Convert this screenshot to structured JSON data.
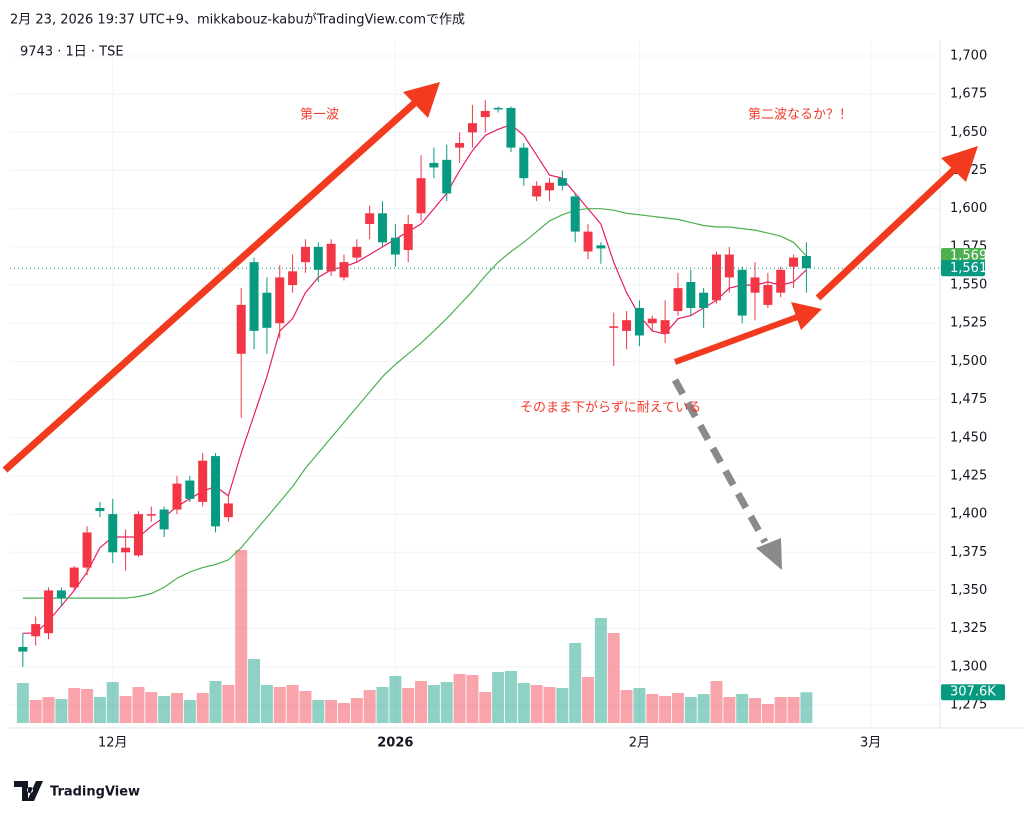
{
  "header": "2月 23, 2026 19:37 UTC+9、mikkabouz-kabuがTradingView.comで作成",
  "logo": "TradingView",
  "chart_data": {
    "type": "candlestick",
    "title": "9743 · 1日 · TSE",
    "x": [
      0,
      1,
      2,
      3,
      4,
      5,
      6,
      7,
      8,
      9,
      10,
      11,
      12,
      13,
      14,
      15,
      16,
      17,
      18,
      19,
      20,
      21,
      22,
      23,
      24,
      25,
      26,
      27,
      28,
      29,
      30,
      31,
      32,
      33,
      34,
      35,
      36,
      37,
      38,
      39,
      40,
      41,
      42,
      43,
      44,
      45,
      46,
      47,
      48,
      49,
      50,
      51,
      52,
      53,
      54,
      55,
      56,
      57,
      58,
      59,
      60,
      61
    ],
    "open": [
      1313,
      1320,
      1322,
      1350,
      1352,
      1365,
      1404,
      1400,
      1375,
      1373,
      1399,
      1403,
      1403,
      1422,
      1408,
      1438,
      1398,
      1505,
      1565,
      1545,
      1525,
      1550,
      1565,
      1575,
      1559,
      1555,
      1568,
      1590,
      1597,
      1581,
      1573,
      1597,
      1630,
      1632,
      1640,
      1650,
      1660,
      1666,
      1666,
      1640,
      1608,
      1612,
      1620,
      1608,
      1572,
      1576,
      1522,
      1520,
      1535,
      1525,
      1518,
      1533,
      1552,
      1545,
      1540,
      1555,
      1560,
      1545,
      1537,
      1545,
      1562,
      1569
    ],
    "high": [
      1322,
      1333,
      1352,
      1352,
      1366,
      1392,
      1408,
      1410,
      1390,
      1402,
      1405,
      1405,
      1425,
      1425,
      1440,
      1440,
      1412,
      1548,
      1568,
      1555,
      1563,
      1570,
      1580,
      1578,
      1580,
      1570,
      1580,
      1602,
      1605,
      1590,
      1596,
      1635,
      1640,
      1642,
      1650,
      1668,
      1671,
      1667,
      1667,
      1643,
      1618,
      1620,
      1625,
      1610,
      1590,
      1578,
      1532,
      1533,
      1540,
      1530,
      1540,
      1558,
      1560,
      1548,
      1572,
      1575,
      1562,
      1565,
      1558,
      1562,
      1570,
      1578
    ],
    "low": [
      1300,
      1314,
      1318,
      1340,
      1350,
      1360,
      1398,
      1368,
      1363,
      1372,
      1395,
      1385,
      1400,
      1408,
      1405,
      1388,
      1395,
      1463,
      1508,
      1505,
      1515,
      1545,
      1558,
      1552,
      1556,
      1553,
      1565,
      1580,
      1575,
      1562,
      1565,
      1592,
      1620,
      1605,
      1630,
      1640,
      1650,
      1663,
      1637,
      1615,
      1605,
      1605,
      1612,
      1578,
      1567,
      1564,
      1497,
      1508,
      1510,
      1520,
      1512,
      1530,
      1530,
      1522,
      1538,
      1545,
      1525,
      1527,
      1535,
      1542,
      1548,
      1545
    ],
    "close": [
      1310,
      1328,
      1350,
      1345,
      1365,
      1388,
      1402,
      1375,
      1378,
      1400,
      1400,
      1390,
      1420,
      1410,
      1435,
      1392,
      1407,
      1537,
      1520,
      1522,
      1555,
      1559,
      1575,
      1560,
      1577,
      1565,
      1575,
      1597,
      1578,
      1570,
      1590,
      1620,
      1627,
      1610,
      1643,
      1656,
      1664,
      1665,
      1640,
      1620,
      1615,
      1617,
      1615,
      1585,
      1585,
      1574,
      1523,
      1527,
      1517,
      1528,
      1527,
      1548,
      1535,
      1535,
      1570,
      1570,
      1530,
      1555,
      1550,
      1560,
      1568,
      1561
    ],
    "up_color": "#f23645",
    "down_color": "#089981",
    "lines": [
      {
        "color": "#e91e63",
        "values": [
          1322,
          1322,
          1330,
          1340,
          1350,
          1362,
          1378,
          1385,
          1385,
          1385,
          1392,
          1398,
          1405,
          1410,
          1415,
          1418,
          1412,
          1440,
          1465,
          1490,
          1520,
          1528,
          1545,
          1555,
          1560,
          1562,
          1565,
          1570,
          1575,
          1580,
          1585,
          1590,
          1600,
          1610,
          1625,
          1638,
          1648,
          1652,
          1655,
          1648,
          1635,
          1622,
          1620,
          1610,
          1600,
          1590,
          1565,
          1545,
          1530,
          1520,
          1518,
          1528,
          1530,
          1535,
          1540,
          1548,
          1550,
          1550,
          1552,
          1550,
          1552,
          1560
        ]
      },
      {
        "color": "#4caf50",
        "values": [
          1345,
          1345,
          1345,
          1345,
          1345,
          1345,
          1345,
          1345,
          1345,
          1346,
          1348,
          1352,
          1358,
          1362,
          1365,
          1367,
          1370,
          1378,
          1388,
          1398,
          1408,
          1418,
          1430,
          1440,
          1450,
          1460,
          1470,
          1480,
          1490,
          1498,
          1505,
          1512,
          1520,
          1528,
          1537,
          1546,
          1556,
          1565,
          1572,
          1578,
          1585,
          1592,
          1596,
          1599,
          1600,
          1600,
          1599,
          1597,
          1596,
          1595,
          1594,
          1593,
          1591,
          1589,
          1588,
          1588,
          1587,
          1586,
          1584,
          1582,
          1578,
          1569
        ]
      }
    ],
    "volume": {
      "values": [
        400000,
        230000,
        260000,
        240000,
        350000,
        340000,
        260000,
        410000,
        270000,
        360000,
        310000,
        270000,
        300000,
        230000,
        300000,
        420000,
        380000,
        1730000,
        640000,
        380000,
        360000,
        380000,
        320000,
        230000,
        230000,
        200000,
        250000,
        330000,
        360000,
        470000,
        350000,
        420000,
        380000,
        410000,
        490000,
        480000,
        310000,
        510000,
        520000,
        400000,
        380000,
        360000,
        350000,
        800000,
        460000,
        1050000,
        900000,
        330000,
        350000,
        290000,
        270000,
        300000,
        260000,
        290000,
        420000,
        260000,
        290000,
        250000,
        190000,
        260000,
        260000,
        307600
      ],
      "vlim": [
        0,
        1760000
      ],
      "last_label": {
        "value": 307600,
        "label": "307.6K"
      }
    },
    "price_labels": [
      {
        "value": 1569,
        "label": "1,569",
        "color": "#4caf50"
      },
      {
        "value": 1561,
        "label": "1,561",
        "color": "#089981"
      }
    ],
    "xlim": [
      -1,
      71.4
    ],
    "xticks": [
      {
        "value": 7,
        "label": "12月"
      },
      {
        "value": 29,
        "label": "2026"
      },
      {
        "value": 48,
        "label": "2月"
      },
      {
        "value": 66,
        "label": "3月"
      }
    ],
    "ylim": [
      1275,
      1700
    ],
    "yticks": [
      {
        "value": 1275,
        "label": "1,275"
      },
      {
        "value": 1300,
        "label": "1,300"
      },
      {
        "value": 1325,
        "label": "1,325"
      },
      {
        "value": 1350,
        "label": "1,350"
      },
      {
        "value": 1375,
        "label": "1,375"
      },
      {
        "value": 1400,
        "label": "1,400"
      },
      {
        "value": 1425,
        "label": "1,425"
      },
      {
        "value": 1450,
        "label": "1,450"
      },
      {
        "value": 1475,
        "label": "1,475"
      },
      {
        "value": 1500,
        "label": "1,500"
      },
      {
        "value": 1525,
        "label": "1,525"
      },
      {
        "value": 1550,
        "label": "1,550"
      },
      {
        "value": 1575,
        "label": "1,575"
      },
      {
        "value": 1600,
        "label": "1,600"
      },
      {
        "value": 1625,
        "label": "1,625"
      },
      {
        "value": 1650,
        "label": "1,650"
      },
      {
        "value": 1675,
        "label": "1,675"
      },
      {
        "value": 1700,
        "label": "1,700"
      }
    ],
    "grid": true,
    "annotations": [
      {
        "text": "第一波",
        "color": "#f23a2a"
      },
      {
        "text": "第二波なるか？！",
        "color": "#f23a2a"
      },
      {
        "text": "そのまま下がらずに耐えている",
        "color": "#f23a2a"
      }
    ]
  }
}
